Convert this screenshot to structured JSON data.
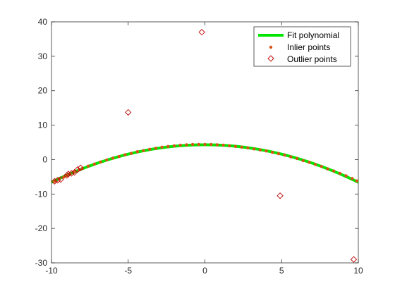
{
  "chart_data": {
    "type": "scatter",
    "title": "",
    "xlabel": "",
    "ylabel": "",
    "xlim": [
      -10,
      10
    ],
    "ylim": [
      -30,
      40
    ],
    "x_ticks": [
      -10,
      -5,
      0,
      5,
      10
    ],
    "y_ticks": [
      -30,
      -20,
      -10,
      0,
      10,
      20,
      30,
      40
    ],
    "x_tick_labels": [
      "-10",
      "-5",
      "0",
      "5",
      "10"
    ],
    "y_tick_labels": [
      "-30",
      "-20",
      "-10",
      "0",
      "10",
      "20",
      "30",
      "40"
    ],
    "grid": false,
    "legend_position": "top-right",
    "colors": {
      "fit": "#00e600",
      "inlier": "#d95319",
      "outlier": "#c00000",
      "axis": "#262626"
    },
    "series": [
      {
        "name": "Fit polynomial",
        "kind": "line",
        "coefficients": [
          4.3,
          0.0,
          -0.109
        ],
        "x_range": [
          -10,
          10
        ]
      },
      {
        "name": "Inlier points",
        "kind": "markers",
        "x": [
          -9.8,
          -9.5,
          -9.2,
          -9.0,
          -8.8,
          -8.5,
          -8.2,
          -8.0,
          -7.6,
          -7.2,
          -6.8,
          -6.4,
          -6.0,
          -5.6,
          -5.2,
          -4.8,
          -4.4,
          -4.0,
          -3.6,
          -3.2,
          -2.8,
          -2.4,
          -2.0,
          -1.6,
          -1.2,
          -0.8,
          -0.4,
          0.0,
          0.4,
          0.8,
          1.2,
          1.6,
          2.0,
          2.4,
          2.8,
          3.2,
          3.6,
          4.0,
          4.4,
          4.8,
          5.2,
          5.6,
          6.0,
          6.4,
          6.8,
          7.2,
          7.6,
          8.0,
          8.4,
          8.8,
          9.2,
          9.6,
          9.9
        ],
        "y": [
          -6.3,
          -5.6,
          -5.1,
          -4.6,
          -4.2,
          -3.6,
          -3.0,
          -2.6,
          -1.9,
          -1.3,
          -0.7,
          -0.1,
          0.4,
          0.9,
          1.4,
          1.8,
          2.3,
          2.6,
          3.0,
          3.3,
          3.6,
          3.8,
          4.0,
          4.2,
          4.3,
          4.4,
          4.4,
          4.4,
          4.4,
          4.3,
          4.2,
          4.0,
          3.8,
          3.6,
          3.4,
          3.1,
          2.8,
          2.5,
          2.1,
          1.7,
          1.3,
          0.8,
          0.3,
          -0.3,
          -0.8,
          -1.4,
          -2.0,
          -2.7,
          -3.3,
          -4.0,
          -4.7,
          -5.5,
          -6.2
        ]
      },
      {
        "name": "Outlier points",
        "kind": "markers",
        "x": [
          -0.2,
          -5.0,
          4.9,
          9.7,
          -9.8,
          -9.6,
          -9.4,
          -9.0,
          -8.9,
          -8.7,
          -8.5,
          -8.3,
          -8.1
        ],
        "y": [
          37.0,
          13.7,
          -10.5,
          -29.0,
          -6.3,
          -6.0,
          -5.8,
          -4.6,
          -4.2,
          -4.0,
          -3.7,
          -2.9,
          -2.4
        ]
      }
    ]
  }
}
